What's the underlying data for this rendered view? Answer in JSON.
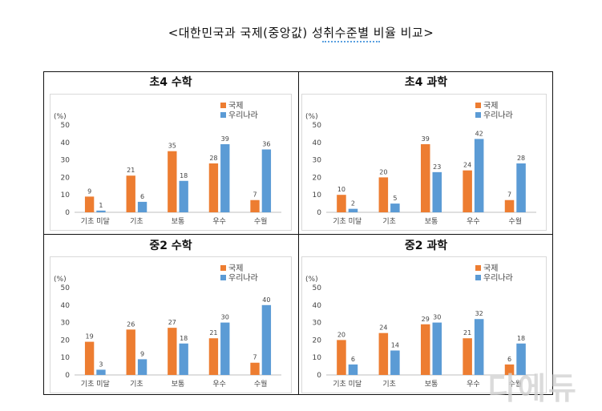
{
  "page_title": "<대한민국과 국제(중앙값) 성취수준별 비율 비교>",
  "watermark": "디에듀",
  "colors": {
    "intl": "#ed7d31",
    "korea": "#5b9bd5"
  },
  "chart_data": [
    {
      "type": "bar",
      "title": "초4 수학",
      "ylabel": "(%)",
      "ylim": [
        0,
        50
      ],
      "yticks": [
        0,
        10,
        20,
        30,
        40,
        50
      ],
      "grid": false,
      "legend": "top-right",
      "categories": [
        "기초 미달",
        "기초",
        "보통",
        "우수",
        "수월"
      ],
      "series": [
        {
          "name": "국제",
          "values": [
            9,
            21,
            35,
            28,
            7
          ]
        },
        {
          "name": "우리나라",
          "values": [
            1,
            6,
            18,
            39,
            36
          ]
        }
      ]
    },
    {
      "type": "bar",
      "title": "초4 과학",
      "ylabel": "(%)",
      "ylim": [
        0,
        50
      ],
      "yticks": [
        0,
        10,
        20,
        30,
        40,
        50
      ],
      "grid": false,
      "legend": "top-right",
      "categories": [
        "기초 미달",
        "기초",
        "보통",
        "우수",
        "수월"
      ],
      "series": [
        {
          "name": "국제",
          "values": [
            10,
            20,
            39,
            24,
            7
          ]
        },
        {
          "name": "우리나라",
          "values": [
            2,
            5,
            23,
            42,
            28
          ]
        }
      ]
    },
    {
      "type": "bar",
      "title": "중2 수학",
      "ylabel": "(%)",
      "ylim": [
        0,
        50
      ],
      "yticks": [
        0,
        10,
        20,
        30,
        40,
        50
      ],
      "grid": false,
      "legend": "top-right",
      "categories": [
        "기초 미달",
        "기초",
        "보통",
        "우수",
        "수월"
      ],
      "series": [
        {
          "name": "국제",
          "values": [
            19,
            26,
            27,
            21,
            7
          ]
        },
        {
          "name": "우리나라",
          "values": [
            3,
            9,
            18,
            30,
            40
          ]
        }
      ]
    },
    {
      "type": "bar",
      "title": "중2 과학",
      "ylabel": "(%)",
      "ylim": [
        0,
        50
      ],
      "yticks": [
        0,
        10,
        20,
        30,
        40,
        50
      ],
      "grid": false,
      "legend": "top-right",
      "categories": [
        "기초 미달",
        "기초",
        "보통",
        "우수",
        "수월"
      ],
      "series": [
        {
          "name": "국제",
          "values": [
            20,
            24,
            29,
            21,
            6
          ]
        },
        {
          "name": "우리나라",
          "values": [
            6,
            14,
            30,
            32,
            18
          ]
        }
      ]
    }
  ]
}
